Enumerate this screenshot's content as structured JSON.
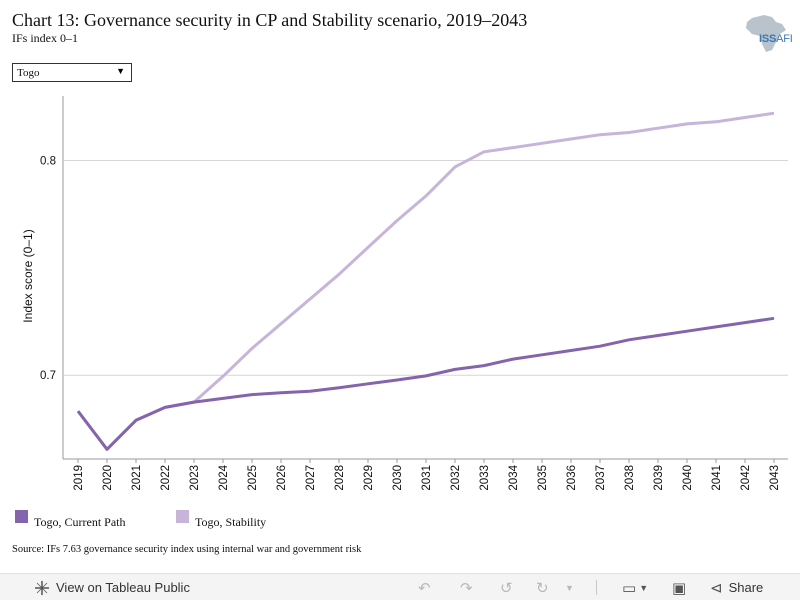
{
  "header": {
    "title": "Chart 13: Governance security in CP and Stability scenario, 2019–2043",
    "subtitle": "IFs index 0–1"
  },
  "logo": {
    "text_iss": "ISS",
    "text_afi": "AFI"
  },
  "filter": {
    "selected": "Togo"
  },
  "chart_data": {
    "type": "line",
    "ylabel": "Index score (0–1)",
    "y_ticks": [
      0.7,
      0.8
    ],
    "y_tick_labels": [
      "0.7",
      "0.8"
    ],
    "ylim": [
      0.661,
      0.83
    ],
    "grid": true,
    "x": [
      "2019",
      "2020",
      "2021",
      "2022",
      "2023",
      "2024",
      "2025",
      "2026",
      "2027",
      "2028",
      "2029",
      "2030",
      "2031",
      "2032",
      "2033",
      "2034",
      "2035",
      "2036",
      "2037",
      "2038",
      "2039",
      "2040",
      "2041",
      "2042",
      "2043"
    ],
    "series": [
      {
        "name": "Togo, Current Path",
        "color": "#8464ac",
        "values": [
          0.6833,
          0.6655,
          0.679,
          0.685,
          0.6875,
          0.6892,
          0.691,
          0.6918,
          0.6925,
          0.6942,
          0.696,
          0.6978,
          0.6997,
          0.7027,
          0.7045,
          0.7075,
          0.7095,
          0.7115,
          0.7135,
          0.7165,
          0.7185,
          0.7205,
          0.7225,
          0.7245,
          0.7265
        ]
      },
      {
        "name": "Togo, Stability",
        "color": "#c6b4db",
        "values": [
          0.6833,
          0.6655,
          0.679,
          0.685,
          0.6875,
          0.6995,
          0.7125,
          0.724,
          0.7355,
          0.747,
          0.7595,
          0.772,
          0.7835,
          0.797,
          0.804,
          0.806,
          0.808,
          0.81,
          0.812,
          0.813,
          0.815,
          0.817,
          0.818,
          0.82,
          0.822
        ]
      }
    ]
  },
  "legend": [
    {
      "label": "Togo, Current Path",
      "color": "#8464ac"
    },
    {
      "label": "Togo, Stability",
      "color": "#c6b4db"
    }
  ],
  "source": "Source: IFs 7.63 governance security index using internal war and government risk",
  "toolbar": {
    "view_label": "View on Tableau Public",
    "share_label": "Share"
  }
}
